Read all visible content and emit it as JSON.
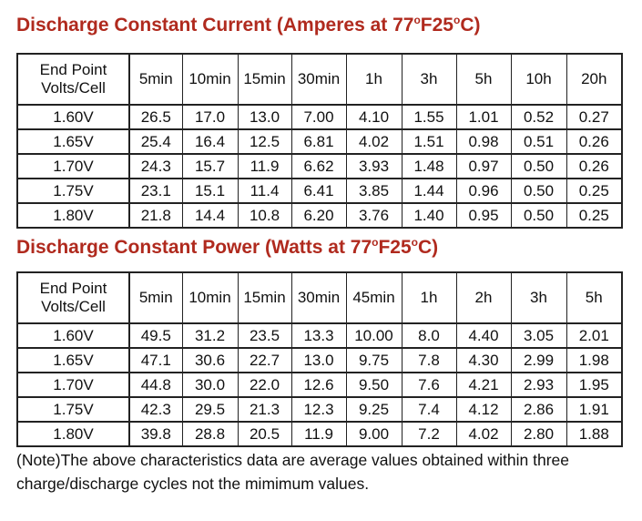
{
  "current_section": {
    "title_main": "Discharge Constant Current (Amperes at 77",
    "title_deg1": "o",
    "title_mid": "F25",
    "title_deg2": "o",
    "title_end": "C)",
    "header_line1": "End Point",
    "header_line2": "Volts/Cell",
    "columns": [
      "5min",
      "10min",
      "15min",
      "30min",
      "1h",
      "3h",
      "5h",
      "10h",
      "20h"
    ],
    "rows": [
      {
        "volts": "1.60V",
        "values": [
          "26.5",
          "17.0",
          "13.0",
          "7.00",
          "4.10",
          "1.55",
          "1.01",
          "0.52",
          "0.27"
        ]
      },
      {
        "volts": "1.65V",
        "values": [
          "25.4",
          "16.4",
          "12.5",
          "6.81",
          "4.02",
          "1.51",
          "0.98",
          "0.51",
          "0.26"
        ]
      },
      {
        "volts": "1.70V",
        "values": [
          "24.3",
          "15.7",
          "11.9",
          "6.62",
          "3.93",
          "1.48",
          "0.97",
          "0.50",
          "0.26"
        ]
      },
      {
        "volts": "1.75V",
        "values": [
          "23.1",
          "15.1",
          "11.4",
          "6.41",
          "3.85",
          "1.44",
          "0.96",
          "0.50",
          "0.25"
        ]
      },
      {
        "volts": "1.80V",
        "values": [
          "21.8",
          "14.4",
          "10.8",
          "6.20",
          "3.76",
          "1.40",
          "0.95",
          "0.50",
          "0.25"
        ]
      }
    ]
  },
  "power_section": {
    "title_main": "Discharge Constant Power (Watts at 77",
    "title_deg1": "o",
    "title_mid": "F25",
    "title_deg2": "o",
    "title_end": "C)",
    "header_line1": "End Point",
    "header_line2": "Volts/Cell",
    "columns": [
      "5min",
      "10min",
      "15min",
      "30min",
      "45min",
      "1h",
      "2h",
      "3h",
      "5h"
    ],
    "rows": [
      {
        "volts": "1.60V",
        "values": [
          "49.5",
          "31.2",
          "23.5",
          "13.3",
          "10.00",
          "8.0",
          "4.40",
          "3.05",
          "2.01"
        ]
      },
      {
        "volts": "1.65V",
        "values": [
          "47.1",
          "30.6",
          "22.7",
          "13.0",
          "9.75",
          "7.8",
          "4.30",
          "2.99",
          "1.98"
        ]
      },
      {
        "volts": "1.70V",
        "values": [
          "44.8",
          "30.0",
          "22.0",
          "12.6",
          "9.50",
          "7.6",
          "4.21",
          "2.93",
          "1.95"
        ]
      },
      {
        "volts": "1.75V",
        "values": [
          "42.3",
          "29.5",
          "21.3",
          "12.3",
          "9.25",
          "7.4",
          "4.12",
          "2.86",
          "1.91"
        ]
      },
      {
        "volts": "1.80V",
        "values": [
          "39.8",
          "28.8",
          "20.5",
          "11.9",
          "9.00",
          "7.2",
          "4.02",
          "2.80",
          "1.88"
        ]
      }
    ]
  },
  "note": "(Note)The above characteristics data are average values obtained within three charge/discharge cycles not the mimimum values.",
  "colors": {
    "title": "#b02a1e",
    "text": "#111111",
    "border": "#222222"
  }
}
